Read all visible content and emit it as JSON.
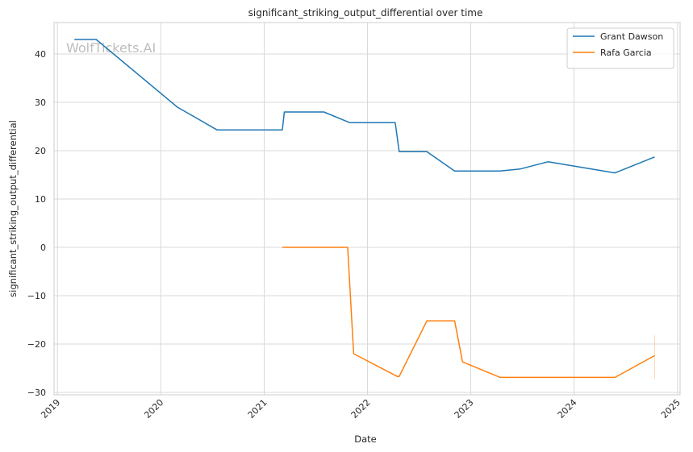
{
  "chart_data": {
    "type": "line",
    "title": "significant_striking_output_differential over time",
    "xlabel": "Date",
    "ylabel": "significant_striking_output_differential",
    "watermark": "WolfTickets.AI",
    "xlim": [
      "2018-12-20",
      "2025-01-10"
    ],
    "ylim": [
      -30.5,
      46.5
    ],
    "x_ticks": [
      "2019-01-01",
      "2020-01-01",
      "2021-01-01",
      "2022-01-01",
      "2023-01-01",
      "2024-01-01",
      "2025-01-01"
    ],
    "x_tick_labels": [
      "2019",
      "2020",
      "2021",
      "2022",
      "2023",
      "2024",
      "2025"
    ],
    "y_ticks": [
      40,
      30,
      20,
      10,
      0,
      -10,
      -20,
      -30
    ],
    "y_tick_labels": [
      "40",
      "30",
      "20",
      "10",
      "0",
      "−10",
      "−20",
      "−30"
    ],
    "grid": true,
    "legend_position": "top-right",
    "series": [
      {
        "name": "Grant Dawson",
        "color": "#1f77b4",
        "points": [
          [
            "2019-03-02",
            43.0
          ],
          [
            "2019-05-18",
            43.0
          ],
          [
            "2020-02-29",
            29.0
          ],
          [
            "2020-07-18",
            24.3
          ],
          [
            "2021-03-06",
            24.3
          ],
          [
            "2021-03-13",
            28.0
          ],
          [
            "2021-07-31",
            28.0
          ],
          [
            "2021-10-30",
            25.8
          ],
          [
            "2022-04-09",
            25.8
          ],
          [
            "2022-04-23",
            19.8
          ],
          [
            "2022-07-30",
            19.8
          ],
          [
            "2022-11-05",
            15.8
          ],
          [
            "2023-04-15",
            15.8
          ],
          [
            "2023-06-24",
            16.2
          ],
          [
            "2023-10-01",
            17.7
          ],
          [
            "2024-05-25",
            15.4
          ],
          [
            "2024-10-12",
            18.7
          ]
        ]
      },
      {
        "name": "Rafa Garcia",
        "color": "#ff7f0e",
        "points": [
          [
            "2021-03-06",
            0.0
          ],
          [
            "2021-10-23",
            0.0
          ],
          [
            "2021-11-13",
            -22.0
          ],
          [
            "2022-04-16",
            -26.7
          ],
          [
            "2022-04-23",
            -26.7
          ],
          [
            "2022-07-30",
            -15.2
          ],
          [
            "2022-11-05",
            -15.2
          ],
          [
            "2022-12-03",
            -23.7
          ],
          [
            "2023-04-15",
            -26.9
          ],
          [
            "2024-05-25",
            -26.9
          ],
          [
            "2024-10-12",
            -22.4
          ]
        ],
        "error_band": {
          "x": "2024-10-12",
          "low": -27.2,
          "high": -18.2
        }
      }
    ]
  }
}
